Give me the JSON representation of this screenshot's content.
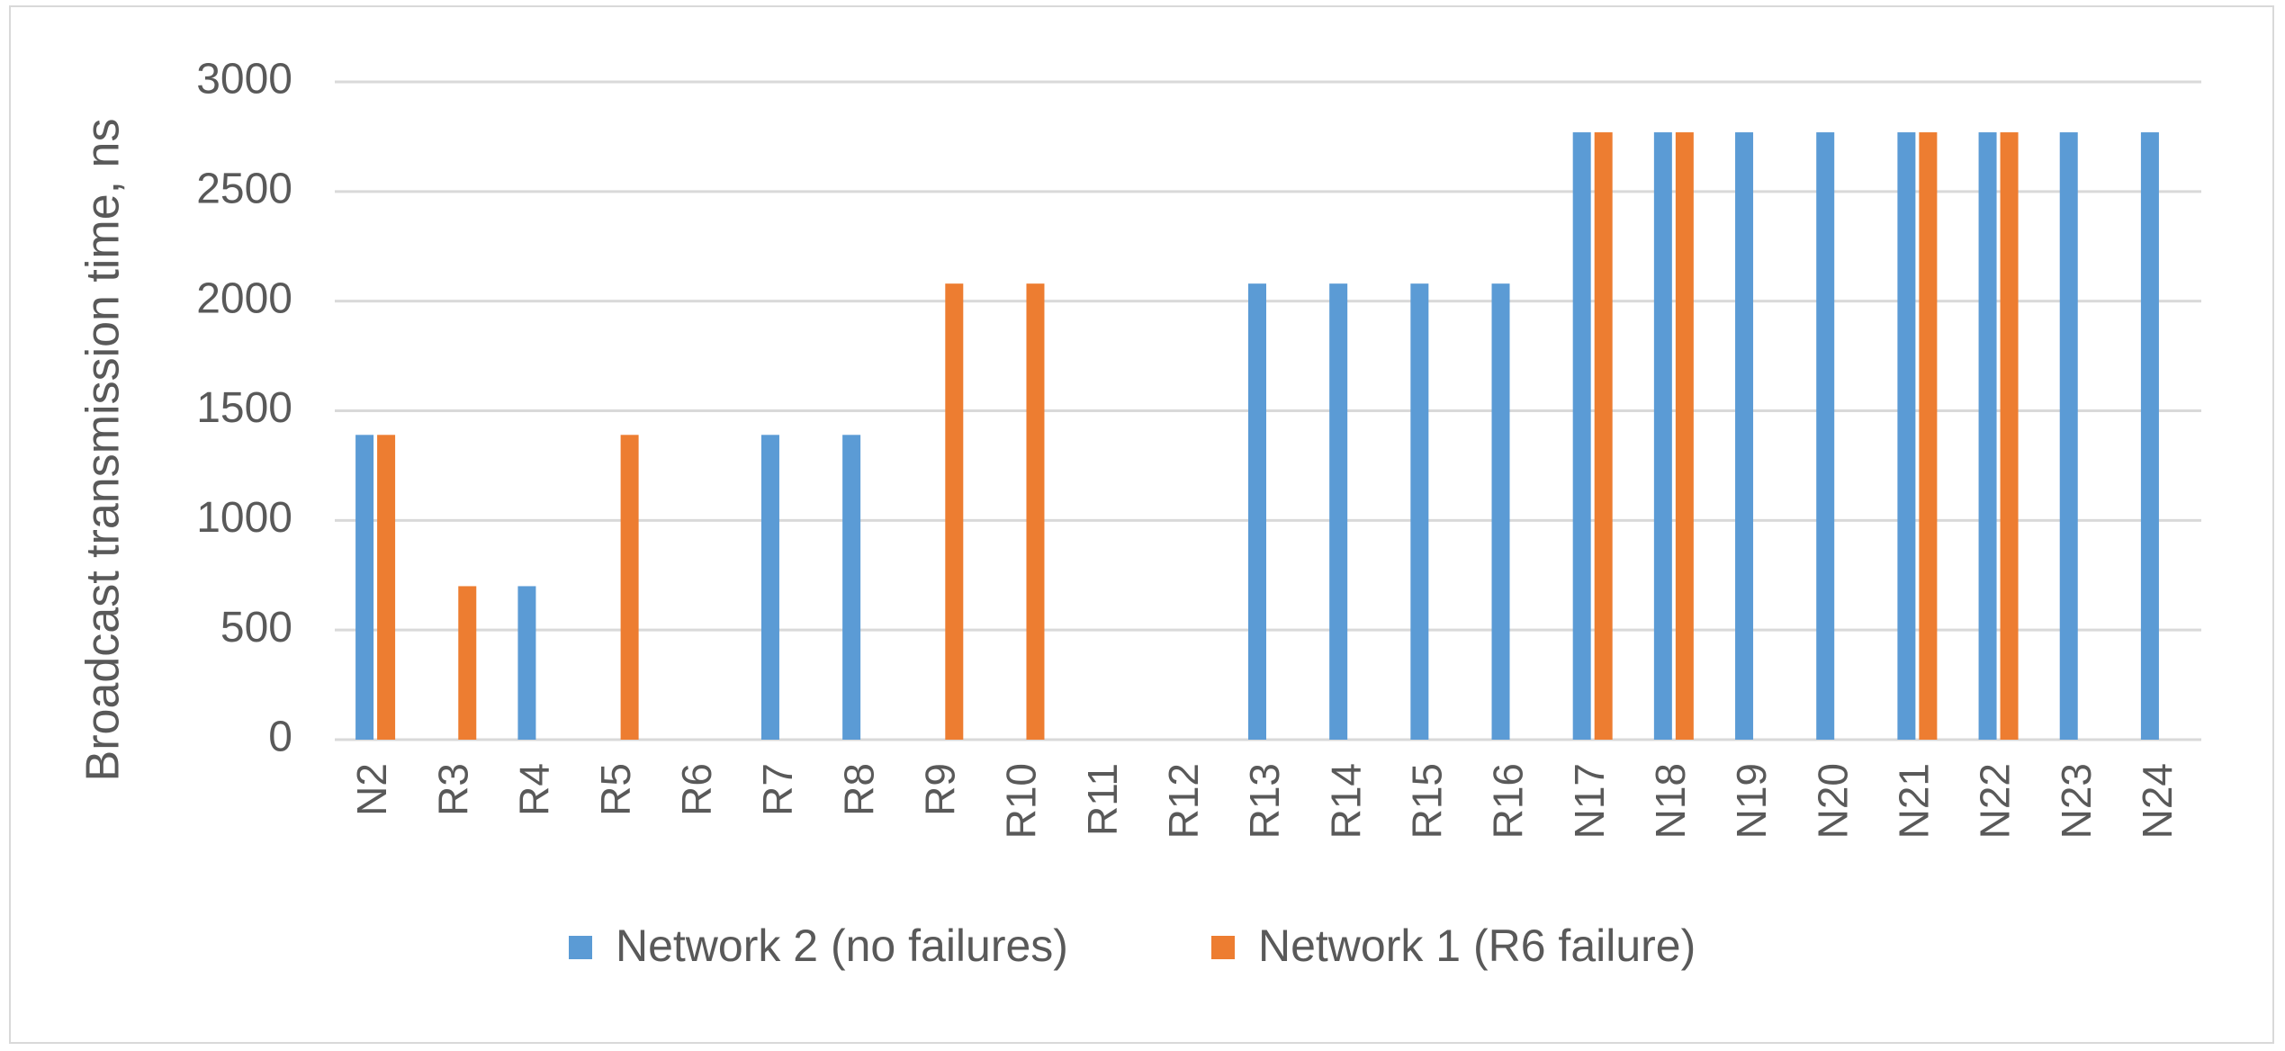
{
  "chart_data": {
    "type": "bar",
    "title": "",
    "xlabel": "",
    "ylabel": "Broadcast transmission time, ns",
    "ylim": [
      0,
      3000
    ],
    "yticks": [
      0,
      500,
      1000,
      1500,
      2000,
      2500,
      3000
    ],
    "grid": "horizontal",
    "legend_position": "bottom",
    "categories": [
      "N2",
      "R3",
      "R4",
      "R5",
      "R6",
      "R7",
      "R8",
      "R9",
      "R10",
      "R11",
      "R12",
      "R13",
      "R14",
      "R15",
      "R16",
      "N17",
      "N18",
      "N19",
      "N20",
      "N21",
      "N22",
      "N23",
      "N24"
    ],
    "series": [
      {
        "name": "Network 2 (no failures)",
        "color": "#5b9bd5",
        "values": [
          1390,
          0,
          700,
          0,
          0,
          1390,
          1390,
          0,
          0,
          0,
          0,
          2080,
          2080,
          2080,
          2080,
          2770,
          2770,
          2770,
          2770,
          2770,
          2770,
          2770,
          2770
        ]
      },
      {
        "name": "Network 1 (R6 failure)",
        "color": "#ed7d31",
        "values": [
          1390,
          700,
          0,
          1390,
          0,
          0,
          0,
          2080,
          2080,
          0,
          0,
          0,
          0,
          0,
          0,
          2770,
          2770,
          0,
          0,
          2770,
          2770,
          0,
          0
        ]
      }
    ]
  }
}
